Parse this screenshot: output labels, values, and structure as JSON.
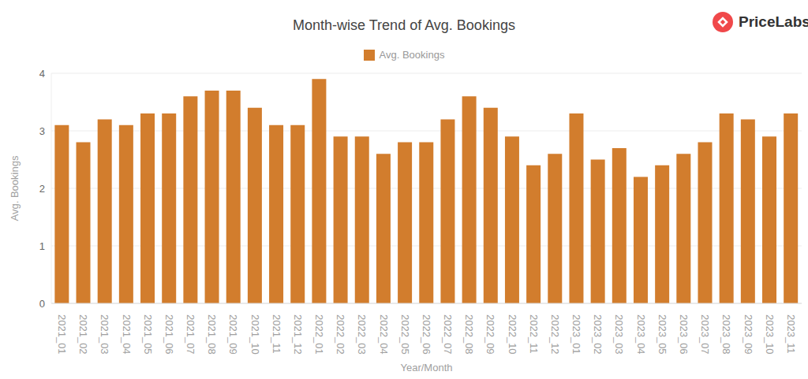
{
  "logo": "PriceLabs",
  "chart_data": {
    "type": "bar",
    "title": "Month-wise Trend of Avg. Bookings",
    "x_label": "Year/Month",
    "y_label": "Avg. Bookings",
    "categories": [
      "2021_01",
      "2021_02",
      "2021_03",
      "2021_04",
      "2021_05",
      "2021_06",
      "2021_07",
      "2021_08",
      "2021_09",
      "2021_10",
      "2021_11",
      "2021_12",
      "2022_01",
      "2022_02",
      "2022_03",
      "2022_04",
      "2022_05",
      "2022_06",
      "2022_07",
      "2022_08",
      "2022_09",
      "2022_10",
      "2022_11",
      "2022_12",
      "2023_01",
      "2023_02",
      "2023_03",
      "2023_04",
      "2023_05",
      "2023_06",
      "2023_07",
      "2023_08",
      "2023_09",
      "2023_10",
      "2023_11"
    ],
    "series": [
      {
        "name": "Avg. Bookings",
        "color": "#d27d2d",
        "values": [
          3.1,
          2.8,
          3.2,
          3.1,
          3.3,
          3.3,
          3.6,
          3.7,
          3.7,
          3.4,
          3.1,
          3.1,
          3.9,
          2.9,
          2.9,
          2.6,
          2.8,
          2.8,
          3.2,
          3.6,
          3.4,
          2.9,
          2.4,
          2.6,
          3.3,
          2.5,
          2.7,
          2.2,
          2.4,
          2.6,
          2.8,
          3.3,
          3.2,
          2.9,
          3.3
        ]
      }
    ],
    "ylim": [
      0,
      4
    ],
    "yticks": [
      0,
      1,
      2,
      3,
      4
    ],
    "grid": true,
    "legend": "top"
  }
}
